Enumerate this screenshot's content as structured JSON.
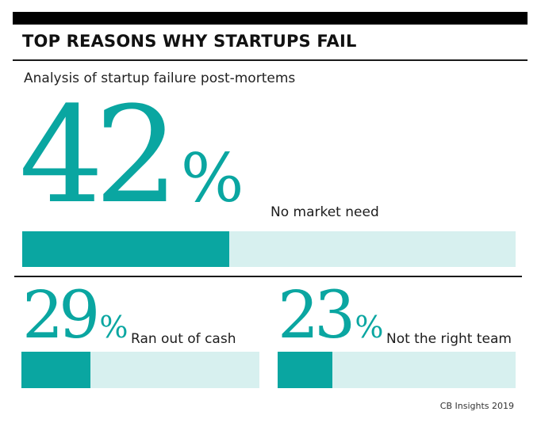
{
  "header": {
    "title": "TOP REASONS WHY STARTUPS FAIL",
    "subtitle": "Analysis of startup failure post-mortems"
  },
  "chart_data": {
    "type": "bar",
    "categories": [
      "No market need",
      "Ran out of cash",
      "Not the right team"
    ],
    "values": [
      42,
      29,
      23
    ],
    "unit": "%",
    "ylim": [
      0,
      100
    ],
    "display": [
      "42",
      "29",
      "23"
    ],
    "percent_sign": "%",
    "title": "TOP REASONS WHY STARTUPS FAIL",
    "subtitle": "Analysis of startup failure post-mortems"
  },
  "colors": {
    "accent": "#0aa6a1",
    "track": "#d7f0ef"
  },
  "footer": {
    "source": "CB Insights 2019"
  }
}
